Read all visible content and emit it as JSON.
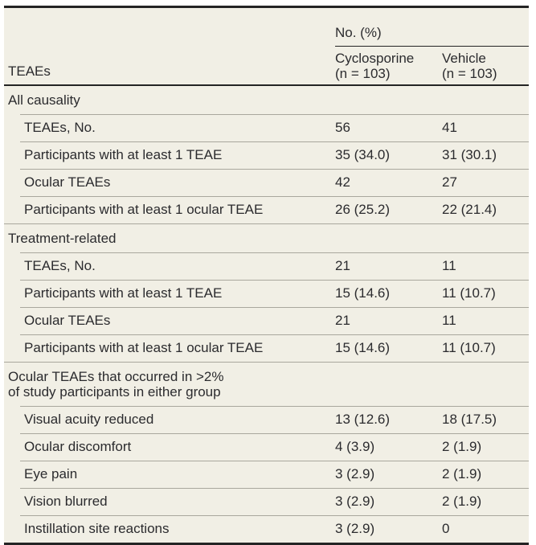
{
  "table": {
    "colors": {
      "figure_background": "#f1efe5",
      "text": "#2b2b2e",
      "rule_heavy": "#242424",
      "rule_light": "#a9a79d"
    },
    "header": {
      "row_label": "TEAEs",
      "spanner": "No. (%)",
      "columns": [
        {
          "name": "Cyclosporine",
          "n": "(n = 103)"
        },
        {
          "name": "Vehicle",
          "n": "(n = 103)"
        }
      ]
    },
    "sections": [
      {
        "label_lines": [
          "All causality"
        ],
        "rows": [
          {
            "label": "TEAEs, No.",
            "cyclosporine": "56",
            "vehicle": "41"
          },
          {
            "label": "Participants with at least 1 TEAE",
            "cyclosporine": "35 (34.0)",
            "vehicle": "31 (30.1)"
          },
          {
            "label": "Ocular TEAEs",
            "cyclosporine": "42",
            "vehicle": "27"
          },
          {
            "label": "Participants with at least 1 ocular TEAE",
            "cyclosporine": "26 (25.2)",
            "vehicle": "22 (21.4)"
          }
        ]
      },
      {
        "label_lines": [
          "Treatment-related"
        ],
        "rows": [
          {
            "label": "TEAEs, No.",
            "cyclosporine": "21",
            "vehicle": "11"
          },
          {
            "label": "Participants with at least 1 TEAE",
            "cyclosporine": "15 (14.6)",
            "vehicle": "11 (10.7)"
          },
          {
            "label": "Ocular TEAEs",
            "cyclosporine": "21",
            "vehicle": "11"
          },
          {
            "label": "Participants with at least 1 ocular TEAE",
            "cyclosporine": "15 (14.6)",
            "vehicle": "11 (10.7)"
          }
        ]
      },
      {
        "label_lines": [
          "Ocular TEAEs that occurred in >2%",
          "of study participants in either group"
        ],
        "rows": [
          {
            "label": "Visual acuity reduced",
            "cyclosporine": "13 (12.6)",
            "vehicle": "18 (17.5)"
          },
          {
            "label": "Ocular discomfort",
            "cyclosporine": "4 (3.9)",
            "vehicle": "2 (1.9)"
          },
          {
            "label": "Eye pain",
            "cyclosporine": "3 (2.9)",
            "vehicle": "2 (1.9)"
          },
          {
            "label": "Vision blurred",
            "cyclosporine": "3 (2.9)",
            "vehicle": "2 (1.9)"
          },
          {
            "label": "Instillation site reactions",
            "cyclosporine": "3 (2.9)",
            "vehicle": "0"
          }
        ]
      }
    ]
  }
}
